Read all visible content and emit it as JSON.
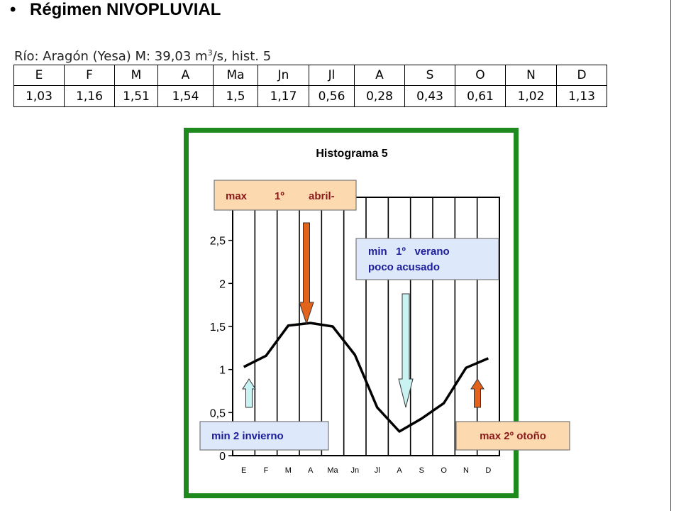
{
  "header": {
    "bullet": "•",
    "title": "Régimen NIVOPLUVIAL"
  },
  "river": {
    "prefix": "Río:  Aragón (Yesa) M: 39,03 m",
    "superscript": "3",
    "suffix": "/s, hist. 5"
  },
  "table": {
    "headers": [
      "E",
      "F",
      "M",
      "A",
      "Ma",
      "Jn",
      "Jl",
      "A",
      "S",
      "O",
      "N",
      "D"
    ],
    "values": [
      "1,03",
      "1,16",
      "1,51",
      "1,54",
      "1,5",
      "1,17",
      "0,56",
      "0,28",
      "0,43",
      "0,61",
      "1,02",
      "1,13"
    ]
  },
  "chart_data": {
    "type": "line",
    "title": "Histograma 5",
    "categories": [
      "E",
      "F",
      "M",
      "A",
      "Ma",
      "Jn",
      "Jl",
      "A",
      "S",
      "O",
      "N",
      "D"
    ],
    "values": [
      1.03,
      1.16,
      1.51,
      1.54,
      1.5,
      1.17,
      0.56,
      0.28,
      0.43,
      0.61,
      1.02,
      1.13
    ],
    "ylim": [
      0,
      2.5
    ],
    "y_ticks": [
      "0",
      "0,5",
      "1",
      "1,5",
      "2",
      "2,5"
    ],
    "grid": true,
    "annotations": {
      "max1": {
        "a": "max",
        "b": "1º",
        "c": "abril-"
      },
      "min1": {
        "line1": "min   1º   verano",
        "line2": "poco acusado"
      },
      "min2": "min 2 invierno",
      "max2": "max 2º otoño"
    },
    "colors": {
      "frame": "#1e8a1e",
      "line": "#000000",
      "orange_arrow": "#e2641c",
      "cyan_arrow": "#c9f2f2",
      "orange_box": "#fdd9b0",
      "blue_box": "#dde8fb",
      "label_blue": "#1d1d9a",
      "label_red": "#8b1a1a"
    }
  }
}
